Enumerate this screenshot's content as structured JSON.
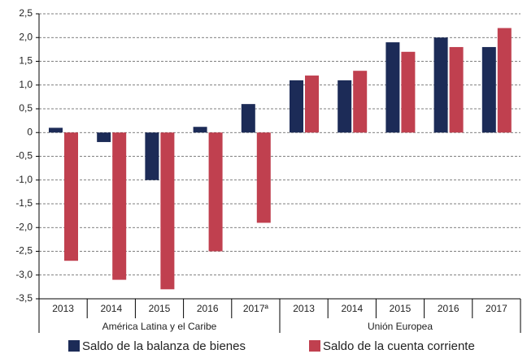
{
  "chart_data": {
    "type": "bar",
    "category_groups": [
      {
        "label": "América Latina y el Caribe",
        "categories": [
          "2013",
          "2014",
          "2015",
          "2016",
          "2017ª"
        ]
      },
      {
        "label": "Unión Europea",
        "categories": [
          "2013",
          "2014",
          "2015",
          "2016",
          "2017"
        ]
      }
    ],
    "series": [
      {
        "name": "Saldo de la balanza de bienes",
        "color": "#1c2b57",
        "values": [
          0.1,
          -0.2,
          -1.0,
          0.12,
          0.6,
          1.1,
          1.1,
          1.9,
          2.0,
          1.8
        ]
      },
      {
        "name": "Saldo de la cuenta corriente",
        "color": "#c0404f",
        "values": [
          -2.7,
          -3.1,
          -3.3,
          -2.5,
          -1.9,
          1.2,
          1.3,
          1.7,
          1.8,
          2.2
        ]
      }
    ],
    "ylim": [
      -3.5,
      2.5
    ],
    "yticks": [
      {
        "value": -3.5,
        "label": "-3,5"
      },
      {
        "value": -3,
        "label": "-3,0"
      },
      {
        "value": -2.5,
        "label": "-2,5"
      },
      {
        "value": -2,
        "label": "-2,0"
      },
      {
        "value": -1.5,
        "label": "-1,5"
      },
      {
        "value": -1,
        "label": "-1,0"
      },
      {
        "value": -0.5,
        "label": "-0,5"
      },
      0,
      {
        "value": 0.5,
        "label": "0,5"
      },
      {
        "value": 1,
        "label": "1,0"
      },
      {
        "value": 1.5,
        "label": "1,5"
      },
      {
        "value": 2,
        "label": "2,0"
      },
      {
        "value": 2.5,
        "label": "2,5"
      }
    ],
    "grid": true
  }
}
